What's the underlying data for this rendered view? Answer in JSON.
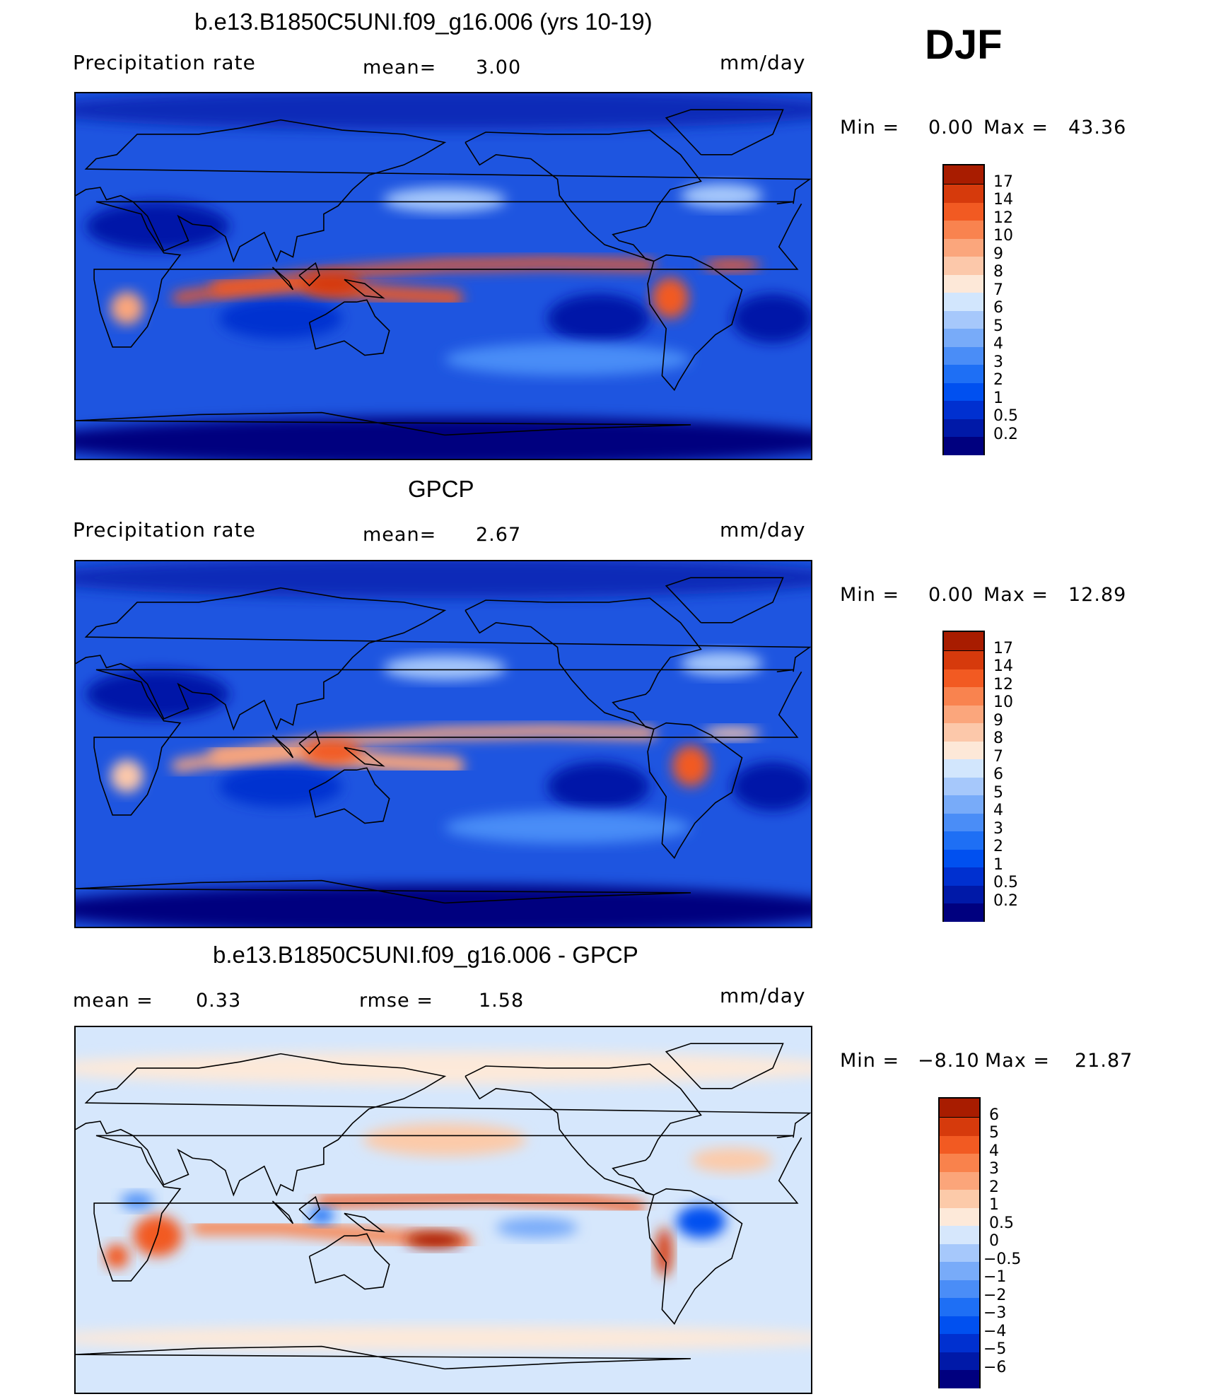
{
  "season": "DJF",
  "panels": [
    {
      "id": "model",
      "title": "b.e13.B1850C5UNI.f09_g16.006 (yrs 10-19)",
      "left_label": "Precipitation  rate",
      "mid_label": "mean=",
      "mid_value": "3.00",
      "units": "mm/day",
      "minmax": {
        "min_label": "Min  =",
        "min": "0.00",
        "max_label": "Max  =",
        "max": "43.36"
      },
      "levels": [
        "0.2",
        "0.5",
        "1",
        "2",
        "3",
        "4",
        "5",
        "6",
        "7",
        "8",
        "9",
        "10",
        "12",
        "14",
        "17"
      ],
      "colors": [
        "#00007f",
        "#0019a8",
        "#0030d0",
        "#0050f0",
        "#1e6ff5",
        "#4a8df7",
        "#78abf9",
        "#a6c8fb",
        "#d2e6fd",
        "#fde8d8",
        "#fcc8aa",
        "#fba67c",
        "#f9834f",
        "#f25a22",
        "#d63a0c",
        "#a81c00"
      ]
    },
    {
      "id": "obs",
      "title": "GPCP",
      "left_label": "Precipitation  rate",
      "mid_label": "mean=",
      "mid_value": "2.67",
      "units": "mm/day",
      "minmax": {
        "min_label": "Min  =",
        "min": "0.00",
        "max_label": "Max  =",
        "max": "12.89"
      },
      "levels": [
        "0.2",
        "0.5",
        "1",
        "2",
        "3",
        "4",
        "5",
        "6",
        "7",
        "8",
        "9",
        "10",
        "12",
        "14",
        "17"
      ],
      "colors": [
        "#00007f",
        "#0019a8",
        "#0030d0",
        "#0050f0",
        "#1e6ff5",
        "#4a8df7",
        "#78abf9",
        "#a6c8fb",
        "#d2e6fd",
        "#fde8d8",
        "#fcc8aa",
        "#fba67c",
        "#f9834f",
        "#f25a22",
        "#d63a0c",
        "#a81c00"
      ]
    },
    {
      "id": "diff",
      "title": "b.e13.B1850C5UNI.f09_g16.006 - GPCP",
      "left_label": "mean  =",
      "left_value": "0.33",
      "mid_label": "rmse  =",
      "mid_value": "1.58",
      "units": "mm/day",
      "minmax": {
        "min_label": "Min  =",
        "min": "−8.10",
        "max_label": "Max  =",
        "max": "21.87"
      },
      "levels": [
        "−6",
        "−5",
        "−4",
        "−3",
        "−2",
        "−1",
        "−0.5",
        "0",
        "0.5",
        "1",
        "2",
        "3",
        "4",
        "5",
        "6"
      ],
      "colors": [
        "#00007f",
        "#0019a8",
        "#0030d0",
        "#0050f0",
        "#1e6ff5",
        "#4a8df7",
        "#78abf9",
        "#a6c8fb",
        "#d6e7fc",
        "#fde9d9",
        "#fccaa9",
        "#fba57a",
        "#f9824c",
        "#f25a22",
        "#d63a0c",
        "#a81c00"
      ]
    }
  ]
}
